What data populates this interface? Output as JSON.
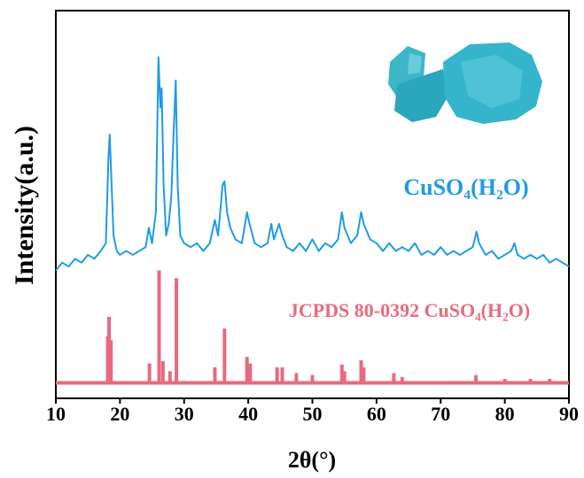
{
  "chart_data": {
    "type": "xrd",
    "xlabel": "2θ(°)",
    "ylabel": "Intensity(a.u.)",
    "xlim": [
      10,
      90
    ],
    "xticks": [
      10,
      20,
      30,
      40,
      50,
      60,
      70,
      80,
      90
    ],
    "ylim": [
      0,
      100
    ],
    "series": [
      {
        "name": "CuSO₄(H₂O)",
        "color": "#1e9be8",
        "kind": "line",
        "x": [
          10,
          11,
          12,
          13,
          14,
          15,
          16,
          17,
          17.8,
          18.2,
          18.4,
          18.7,
          19,
          19.5,
          20,
          21,
          22,
          23,
          24,
          24.5,
          25,
          25.6,
          26,
          26.3,
          26.5,
          26.8,
          27.2,
          27.6,
          28,
          28.4,
          28.7,
          29,
          29.4,
          30,
          31,
          32,
          33,
          34,
          34.8,
          35.3,
          36,
          36.3,
          36.7,
          37.2,
          38,
          39,
          39.8,
          40.2,
          41,
          42,
          43,
          43.6,
          44,
          44.8,
          45.3,
          46,
          47,
          48,
          49,
          50,
          51,
          52,
          53,
          54,
          54.6,
          55,
          56,
          57,
          57.6,
          58,
          59,
          60,
          61,
          62,
          63,
          64,
          65,
          66,
          67,
          68,
          69,
          70,
          71,
          72,
          73,
          74,
          75,
          75.6,
          76,
          77,
          78,
          79,
          80,
          81,
          81.5,
          82,
          83,
          84,
          85,
          86,
          87,
          88,
          89,
          90
        ],
        "values": [
          33,
          35,
          34,
          36,
          35,
          37,
          36,
          38,
          40,
          62,
          68,
          55,
          42,
          38,
          37,
          38,
          37,
          38,
          39,
          44,
          40,
          48,
          88,
          75,
          80,
          55,
          42,
          45,
          52,
          70,
          82,
          55,
          42,
          40,
          39,
          40,
          38,
          40,
          46,
          42,
          55,
          56,
          48,
          44,
          41,
          40,
          48,
          45,
          40,
          39,
          40,
          45,
          41,
          45,
          42,
          39,
          38,
          40,
          38,
          41,
          38,
          40,
          39,
          41,
          48,
          44,
          40,
          42,
          48,
          45,
          41,
          40,
          38,
          40,
          38,
          39,
          38,
          40,
          37,
          38,
          37,
          39,
          37,
          38,
          37,
          38,
          39,
          43,
          40,
          37,
          38,
          36,
          37,
          38,
          40,
          37,
          36,
          37,
          36,
          37,
          35,
          36,
          35,
          34
        ]
      },
      {
        "name": "JCPDS 80-0392 CuSO₄(H₂O)",
        "color": "#e86a80",
        "kind": "sticks",
        "baseline": 4,
        "x": [
          18.1,
          18.3,
          18.6,
          24.6,
          26.1,
          26.7,
          27.8,
          28.8,
          34.8,
          36.3,
          39.8,
          40.3,
          44.5,
          45.3,
          47.5,
          50,
          54.6,
          55,
          57.6,
          58,
          62.7,
          64,
          75.5,
          80,
          84,
          87
        ],
        "values": [
          16,
          21,
          15,
          9,
          33,
          9.6,
          7,
          31,
          8,
          18,
          10.7,
          9,
          8,
          8,
          6.5,
          6,
          8.7,
          7,
          9.8,
          8,
          6.5,
          5.5,
          6,
          5,
          5,
          5
        ]
      }
    ]
  }
}
